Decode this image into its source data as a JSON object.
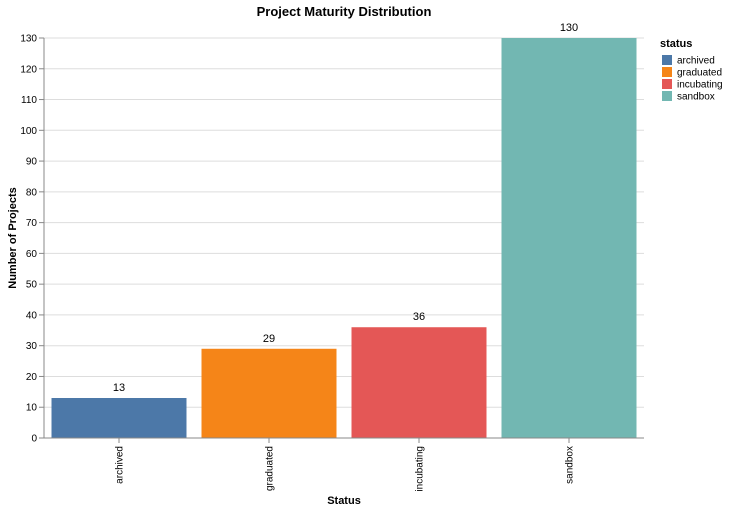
{
  "chart_data": {
    "type": "bar",
    "title": "Project Maturity Distribution",
    "xlabel": "Status",
    "ylabel": "Number of Projects",
    "categories": [
      "archived",
      "graduated",
      "incubating",
      "sandbox"
    ],
    "values": [
      13,
      29,
      36,
      130
    ],
    "colors": [
      "#4c78a8",
      "#f58518",
      "#e45756",
      "#72b7b2"
    ],
    "ylim": [
      0,
      130
    ],
    "yticks": [
      0,
      10,
      20,
      30,
      40,
      50,
      60,
      70,
      80,
      90,
      100,
      110,
      120,
      130
    ],
    "grid": true,
    "legend": {
      "title": "status",
      "placement": "right",
      "entries": [
        "archived",
        "graduated",
        "incubating",
        "sandbox"
      ]
    }
  }
}
